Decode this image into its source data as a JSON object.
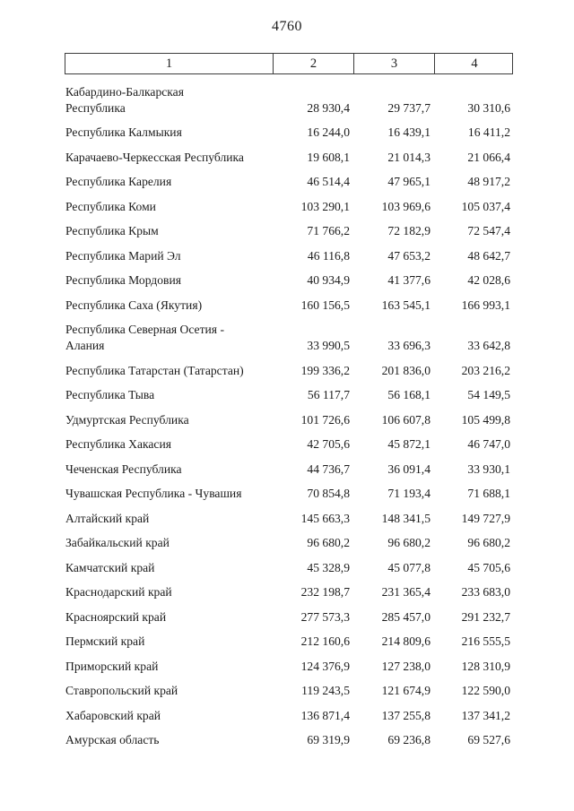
{
  "page": {
    "number": "4760"
  },
  "table": {
    "header": [
      "1",
      "2",
      "3",
      "4"
    ],
    "rows": [
      {
        "name": "Кабардино-Балкарская\nРеспублика",
        "c2": "28 930,4",
        "c3": "29 737,7",
        "c4": "30 310,6"
      },
      {
        "name": "Республика Калмыкия",
        "c2": "16 244,0",
        "c3": "16 439,1",
        "c4": "16 411,2"
      },
      {
        "name": "Карачаево-Черкесская Республика",
        "c2": "19 608,1",
        "c3": "21 014,3",
        "c4": "21 066,4"
      },
      {
        "name": "Республика Карелия",
        "c2": "46 514,4",
        "c3": "47 965,1",
        "c4": "48 917,2"
      },
      {
        "name": "Республика Коми",
        "c2": "103 290,1",
        "c3": "103 969,6",
        "c4": "105 037,4"
      },
      {
        "name": "Республика Крым",
        "c2": "71 766,2",
        "c3": "72 182,9",
        "c4": "72 547,4"
      },
      {
        "name": "Республика Марий Эл",
        "c2": "46 116,8",
        "c3": "47 653,2",
        "c4": "48 642,7"
      },
      {
        "name": "Республика Мордовия",
        "c2": "40 934,9",
        "c3": "41 377,6",
        "c4": "42 028,6"
      },
      {
        "name": "Республика Саха (Якутия)",
        "c2": "160 156,5",
        "c3": "163 545,1",
        "c4": "166 993,1"
      },
      {
        "name": "Республика Северная Осетия -\nАлания",
        "c2": "33 990,5",
        "c3": "33 696,3",
        "c4": "33 642,8"
      },
      {
        "name": "Республика Татарстан (Татарстан)",
        "c2": "199 336,2",
        "c3": "201 836,0",
        "c4": "203 216,2"
      },
      {
        "name": "Республика Тыва",
        "c2": "56 117,7",
        "c3": "56 168,1",
        "c4": "54 149,5"
      },
      {
        "name": "Удмуртская Республика",
        "c2": "101 726,6",
        "c3": "106 607,8",
        "c4": "105 499,8"
      },
      {
        "name": "Республика Хакасия",
        "c2": "42 705,6",
        "c3": "45 872,1",
        "c4": "46 747,0"
      },
      {
        "name": "Чеченская Республика",
        "c2": "44 736,7",
        "c3": "36 091,4",
        "c4": "33 930,1"
      },
      {
        "name": "Чувашская Республика - Чувашия",
        "c2": "70 854,8",
        "c3": "71 193,4",
        "c4": "71 688,1"
      },
      {
        "name": "Алтайский край",
        "c2": "145 663,3",
        "c3": "148 341,5",
        "c4": "149 727,9"
      },
      {
        "name": "Забайкальский край",
        "c2": "96 680,2",
        "c3": "96 680,2",
        "c4": "96 680,2"
      },
      {
        "name": "Камчатский край",
        "c2": "45 328,9",
        "c3": "45 077,8",
        "c4": "45 705,6"
      },
      {
        "name": "Краснодарский край",
        "c2": "232 198,7",
        "c3": "231 365,4",
        "c4": "233 683,0"
      },
      {
        "name": "Красноярский край",
        "c2": "277 573,3",
        "c3": "285 457,0",
        "c4": "291 232,7"
      },
      {
        "name": "Пермский край",
        "c2": "212 160,6",
        "c3": "214 809,6",
        "c4": "216 555,5"
      },
      {
        "name": "Приморский край",
        "c2": "124 376,9",
        "c3": "127 238,0",
        "c4": "128 310,9"
      },
      {
        "name": "Ставропольский край",
        "c2": "119 243,5",
        "c3": "121 674,9",
        "c4": "122 590,0"
      },
      {
        "name": "Хабаровский край",
        "c2": "136 871,4",
        "c3": "137 255,8",
        "c4": "137 341,2"
      },
      {
        "name": "Амурская область",
        "c2": "69 319,9",
        "c3": "69 236,8",
        "c4": "69 527,6"
      }
    ]
  }
}
